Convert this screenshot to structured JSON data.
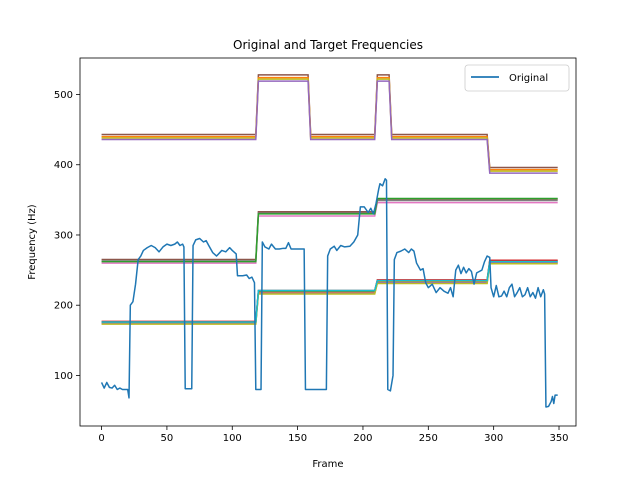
{
  "chart_data": {
    "type": "line",
    "title": "Original and Target Frequencies",
    "xlabel": "Frame",
    "ylabel": "Frequency (Hz)",
    "xlim": [
      -16.5,
      363
    ],
    "ylim": [
      28,
      552
    ],
    "x_ticks": [
      0,
      50,
      100,
      150,
      200,
      250,
      300,
      350
    ],
    "y_ticks": [
      100,
      200,
      300,
      400,
      500
    ],
    "grid": false,
    "legend_placement": "top-right",
    "legend": [
      {
        "label": "Original",
        "color": "#1f77b4"
      }
    ],
    "original": {
      "name": "Original",
      "color": "#1f77b4",
      "points": [
        [
          0,
          90
        ],
        [
          2,
          82
        ],
        [
          4,
          90
        ],
        [
          6,
          83
        ],
        [
          8,
          82
        ],
        [
          10,
          86
        ],
        [
          12,
          80
        ],
        [
          14,
          82
        ],
        [
          16,
          80
        ],
        [
          18,
          80
        ],
        [
          20,
          80
        ],
        [
          21,
          68
        ],
        [
          22,
          200
        ],
        [
          24,
          205
        ],
        [
          26,
          230
        ],
        [
          28,
          265
        ],
        [
          30,
          270
        ],
        [
          32,
          278
        ],
        [
          35,
          282
        ],
        [
          38,
          285
        ],
        [
          41,
          282
        ],
        [
          44,
          276
        ],
        [
          47,
          283
        ],
        [
          50,
          287
        ],
        [
          53,
          285
        ],
        [
          56,
          287
        ],
        [
          58,
          290
        ],
        [
          60,
          285
        ],
        [
          62,
          287
        ],
        [
          63,
          283
        ],
        [
          64,
          81
        ],
        [
          69,
          81
        ],
        [
          70,
          285
        ],
        [
          72,
          293
        ],
        [
          75,
          295
        ],
        [
          78,
          290
        ],
        [
          80,
          292
        ],
        [
          82,
          285
        ],
        [
          85,
          275
        ],
        [
          88,
          270
        ],
        [
          92,
          278
        ],
        [
          95,
          276
        ],
        [
          98,
          282
        ],
        [
          100,
          278
        ],
        [
          103,
          273
        ],
        [
          104,
          242
        ],
        [
          108,
          242
        ],
        [
          111,
          243
        ],
        [
          113,
          238
        ],
        [
          115,
          240
        ],
        [
          117,
          232
        ],
        [
          118,
          80
        ],
        [
          122,
          80
        ],
        [
          123,
          290
        ],
        [
          125,
          283
        ],
        [
          128,
          280
        ],
        [
          130,
          287
        ],
        [
          133,
          280
        ],
        [
          136,
          280
        ],
        [
          139,
          281
        ],
        [
          141,
          281
        ],
        [
          143,
          289
        ],
        [
          145,
          280
        ],
        [
          150,
          280
        ],
        [
          155,
          280
        ],
        [
          156,
          80
        ],
        [
          160,
          80
        ],
        [
          165,
          80
        ],
        [
          170,
          80
        ],
        [
          172,
          80
        ],
        [
          173,
          270
        ],
        [
          175,
          280
        ],
        [
          178,
          284
        ],
        [
          180,
          278
        ],
        [
          183,
          285
        ],
        [
          186,
          283
        ],
        [
          190,
          284
        ],
        [
          193,
          290
        ],
        [
          196,
          300
        ],
        [
          198,
          340
        ],
        [
          201,
          340
        ],
        [
          204,
          332
        ],
        [
          206,
          338
        ],
        [
          208,
          330
        ],
        [
          210,
          345
        ],
        [
          212,
          365
        ],
        [
          213,
          373
        ],
        [
          215,
          370
        ],
        [
          217,
          380
        ],
        [
          218,
          378
        ],
        [
          219,
          80
        ],
        [
          221,
          78
        ],
        [
          223,
          100
        ],
        [
          224,
          265
        ],
        [
          226,
          275
        ],
        [
          229,
          277
        ],
        [
          232,
          280
        ],
        [
          235,
          275
        ],
        [
          237,
          280
        ],
        [
          239,
          277
        ],
        [
          241,
          260
        ],
        [
          244,
          250
        ],
        [
          246,
          252
        ],
        [
          248,
          232
        ],
        [
          250,
          225
        ],
        [
          253,
          230
        ],
        [
          256,
          218
        ],
        [
          259,
          225
        ],
        [
          262,
          220
        ],
        [
          265,
          217
        ],
        [
          267,
          225
        ],
        [
          269,
          212
        ],
        [
          271,
          250
        ],
        [
          273,
          257
        ],
        [
          275,
          245
        ],
        [
          277,
          254
        ],
        [
          279,
          246
        ],
        [
          281,
          252
        ],
        [
          283,
          248
        ],
        [
          285,
          230
        ],
        [
          287,
          246
        ],
        [
          289,
          248
        ],
        [
          291,
          250
        ],
        [
          293,
          262
        ],
        [
          295,
          270
        ],
        [
          297,
          268
        ],
        [
          298,
          225
        ],
        [
          300,
          212
        ],
        [
          302,
          228
        ],
        [
          304,
          212
        ],
        [
          306,
          213
        ],
        [
          308,
          220
        ],
        [
          310,
          212
        ],
        [
          312,
          225
        ],
        [
          314,
          230
        ],
        [
          316,
          212
        ],
        [
          318,
          218
        ],
        [
          320,
          225
        ],
        [
          322,
          212
        ],
        [
          324,
          215
        ],
        [
          326,
          225
        ],
        [
          328,
          212
        ],
        [
          330,
          218
        ],
        [
          332,
          210
        ],
        [
          334,
          225
        ],
        [
          336,
          212
        ],
        [
          338,
          222
        ],
        [
          339,
          216
        ],
        [
          340,
          55
        ],
        [
          342,
          56
        ],
        [
          344,
          63
        ],
        [
          345,
          70
        ],
        [
          346,
          60
        ],
        [
          347,
          72
        ],
        [
          349,
          72
        ]
      ]
    },
    "targets": [
      {
        "color": "#ff7f0e",
        "points": [
          [
            0,
            175
          ],
          [
            118,
            175
          ],
          [
            120,
            218
          ],
          [
            209,
            218
          ],
          [
            211,
            233
          ],
          [
            295,
            233
          ],
          [
            297,
            261
          ],
          [
            349,
            261
          ]
        ]
      },
      {
        "color": "#2ca02c",
        "points": [
          [
            0,
            176
          ],
          [
            118,
            176
          ],
          [
            120,
            220
          ],
          [
            209,
            220
          ],
          [
            211,
            235
          ],
          [
            295,
            235
          ],
          [
            297,
            263
          ],
          [
            349,
            263
          ]
        ]
      },
      {
        "color": "#d62728",
        "points": [
          [
            0,
            177
          ],
          [
            118,
            177
          ],
          [
            120,
            221
          ],
          [
            209,
            221
          ],
          [
            211,
            236
          ],
          [
            295,
            236
          ],
          [
            297,
            264
          ],
          [
            349,
            264
          ]
        ]
      },
      {
        "color": "#9467bd",
        "points": [
          [
            0,
            174
          ],
          [
            118,
            174
          ],
          [
            120,
            217
          ],
          [
            209,
            217
          ],
          [
            211,
            232
          ],
          [
            295,
            232
          ],
          [
            297,
            260
          ],
          [
            349,
            260
          ]
        ]
      },
      {
        "color": "#bcbd22",
        "points": [
          [
            0,
            173
          ],
          [
            118,
            173
          ],
          [
            120,
            216
          ],
          [
            209,
            216
          ],
          [
            211,
            231
          ],
          [
            295,
            231
          ],
          [
            297,
            259
          ],
          [
            349,
            259
          ]
        ]
      },
      {
        "color": "#17becf",
        "points": [
          [
            0,
            176
          ],
          [
            118,
            176
          ],
          [
            120,
            221
          ],
          [
            209,
            221
          ],
          [
            211,
            235
          ],
          [
            295,
            235
          ],
          [
            297,
            262
          ],
          [
            349,
            262
          ]
        ]
      },
      {
        "color": "#8c564b",
        "points": [
          [
            0,
            265
          ],
          [
            118,
            265
          ],
          [
            120,
            333
          ],
          [
            209,
            333
          ],
          [
            211,
            351
          ],
          [
            349,
            351
          ]
        ]
      },
      {
        "color": "#e377c2",
        "points": [
          [
            0,
            260
          ],
          [
            118,
            260
          ],
          [
            120,
            327
          ],
          [
            209,
            327
          ],
          [
            211,
            346
          ],
          [
            349,
            346
          ]
        ]
      },
      {
        "color": "#7f7f7f",
        "points": [
          [
            0,
            263
          ],
          [
            118,
            263
          ],
          [
            120,
            331
          ],
          [
            209,
            331
          ],
          [
            211,
            349
          ],
          [
            349,
            349
          ]
        ]
      },
      {
        "color": "#2ca02c",
        "points": [
          [
            0,
            262
          ],
          [
            118,
            262
          ],
          [
            120,
            330
          ],
          [
            209,
            330
          ],
          [
            211,
            352
          ],
          [
            349,
            352
          ]
        ]
      },
      {
        "color": "#8c564b",
        "points": [
          [
            0,
            443
          ],
          [
            118,
            443
          ],
          [
            120,
            528
          ],
          [
            158,
            528
          ],
          [
            160,
            443
          ],
          [
            209,
            443
          ],
          [
            211,
            528
          ],
          [
            220,
            528
          ],
          [
            222,
            443
          ],
          [
            295,
            443
          ],
          [
            297,
            396
          ],
          [
            349,
            396
          ]
        ]
      },
      {
        "color": "#ff7f0e",
        "points": [
          [
            0,
            440
          ],
          [
            118,
            440
          ],
          [
            120,
            524
          ],
          [
            158,
            524
          ],
          [
            160,
            440
          ],
          [
            209,
            440
          ],
          [
            211,
            524
          ],
          [
            220,
            524
          ],
          [
            222,
            440
          ],
          [
            295,
            440
          ],
          [
            297,
            393
          ],
          [
            349,
            393
          ]
        ]
      },
      {
        "color": "#bcbd22",
        "points": [
          [
            0,
            438
          ],
          [
            118,
            438
          ],
          [
            120,
            522
          ],
          [
            158,
            522
          ],
          [
            160,
            438
          ],
          [
            209,
            438
          ],
          [
            211,
            522
          ],
          [
            220,
            522
          ],
          [
            222,
            438
          ],
          [
            295,
            438
          ],
          [
            297,
            391
          ],
          [
            349,
            391
          ]
        ]
      },
      {
        "color": "#9467bd",
        "points": [
          [
            0,
            436
          ],
          [
            118,
            436
          ],
          [
            120,
            519
          ],
          [
            158,
            519
          ],
          [
            160,
            436
          ],
          [
            209,
            436
          ],
          [
            211,
            519
          ],
          [
            220,
            519
          ],
          [
            222,
            436
          ],
          [
            295,
            436
          ],
          [
            297,
            388
          ],
          [
            349,
            388
          ]
        ]
      }
    ]
  }
}
